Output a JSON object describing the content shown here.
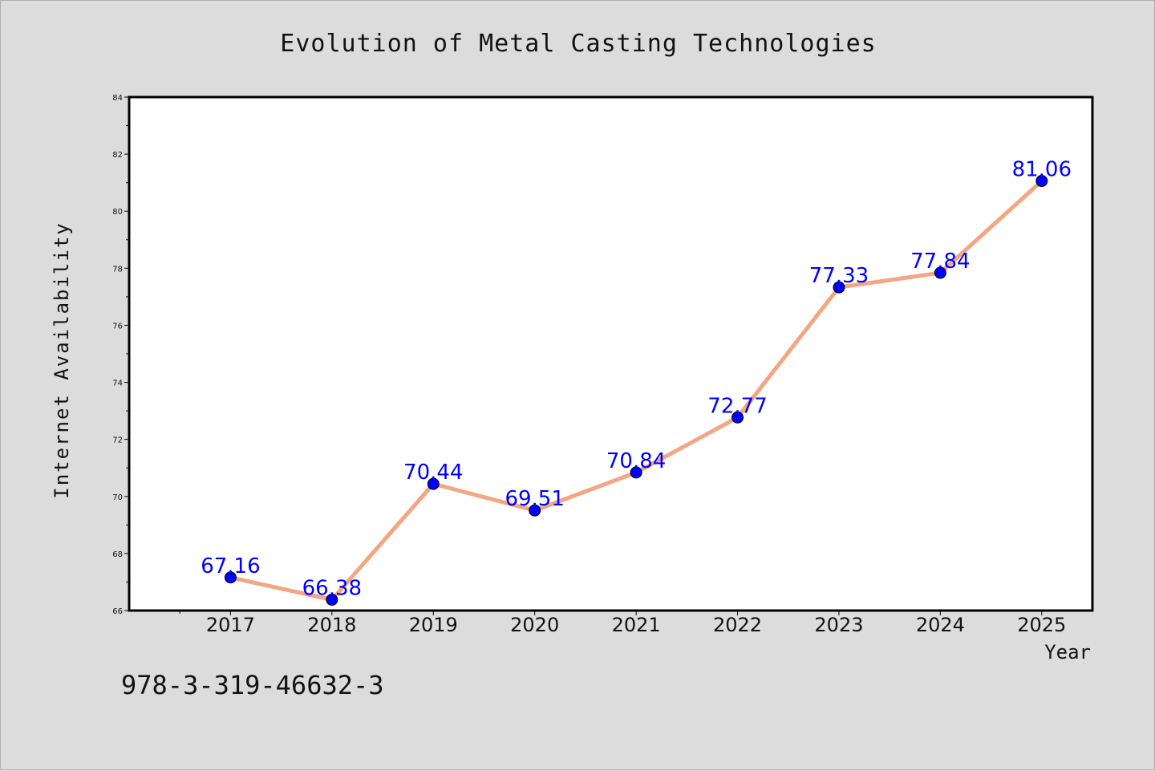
{
  "chart_data": {
    "type": "line",
    "title": "Evolution of Metal Casting Technologies",
    "xlabel": "Year",
    "ylabel": "Internet Availability",
    "categories": [
      "2017",
      "2018",
      "2019",
      "2020",
      "2021",
      "2022",
      "2023",
      "2024",
      "2025"
    ],
    "x": [
      2017,
      2018,
      2019,
      2020,
      2021,
      2022,
      2023,
      2024,
      2025
    ],
    "series": [
      {
        "values": [
          67.16,
          66.38,
          70.44,
          69.51,
          70.84,
          72.77,
          77.33,
          77.84,
          81.06
        ],
        "labels": [
          "67.16",
          "66.38",
          "70.44",
          "69.51",
          "70.84",
          "72.77",
          "77.33",
          "77.84",
          "81.06"
        ],
        "line_color": "#f4a582",
        "marker_color": "#0000ff"
      }
    ],
    "xlim": [
      2016,
      2025.5
    ],
    "ylim": [
      66,
      84
    ],
    "yticks": [
      66,
      68,
      70,
      72,
      74,
      76,
      78,
      80,
      82,
      84
    ],
    "ytick_labels": [
      "66",
      "68",
      "70",
      "72",
      "74",
      "76",
      "78",
      "80",
      "82",
      "84"
    ],
    "data_label_color": "#0000ff",
    "grid": false,
    "legend": "none"
  },
  "footer": {
    "text": "978-3-319-46632-3"
  }
}
